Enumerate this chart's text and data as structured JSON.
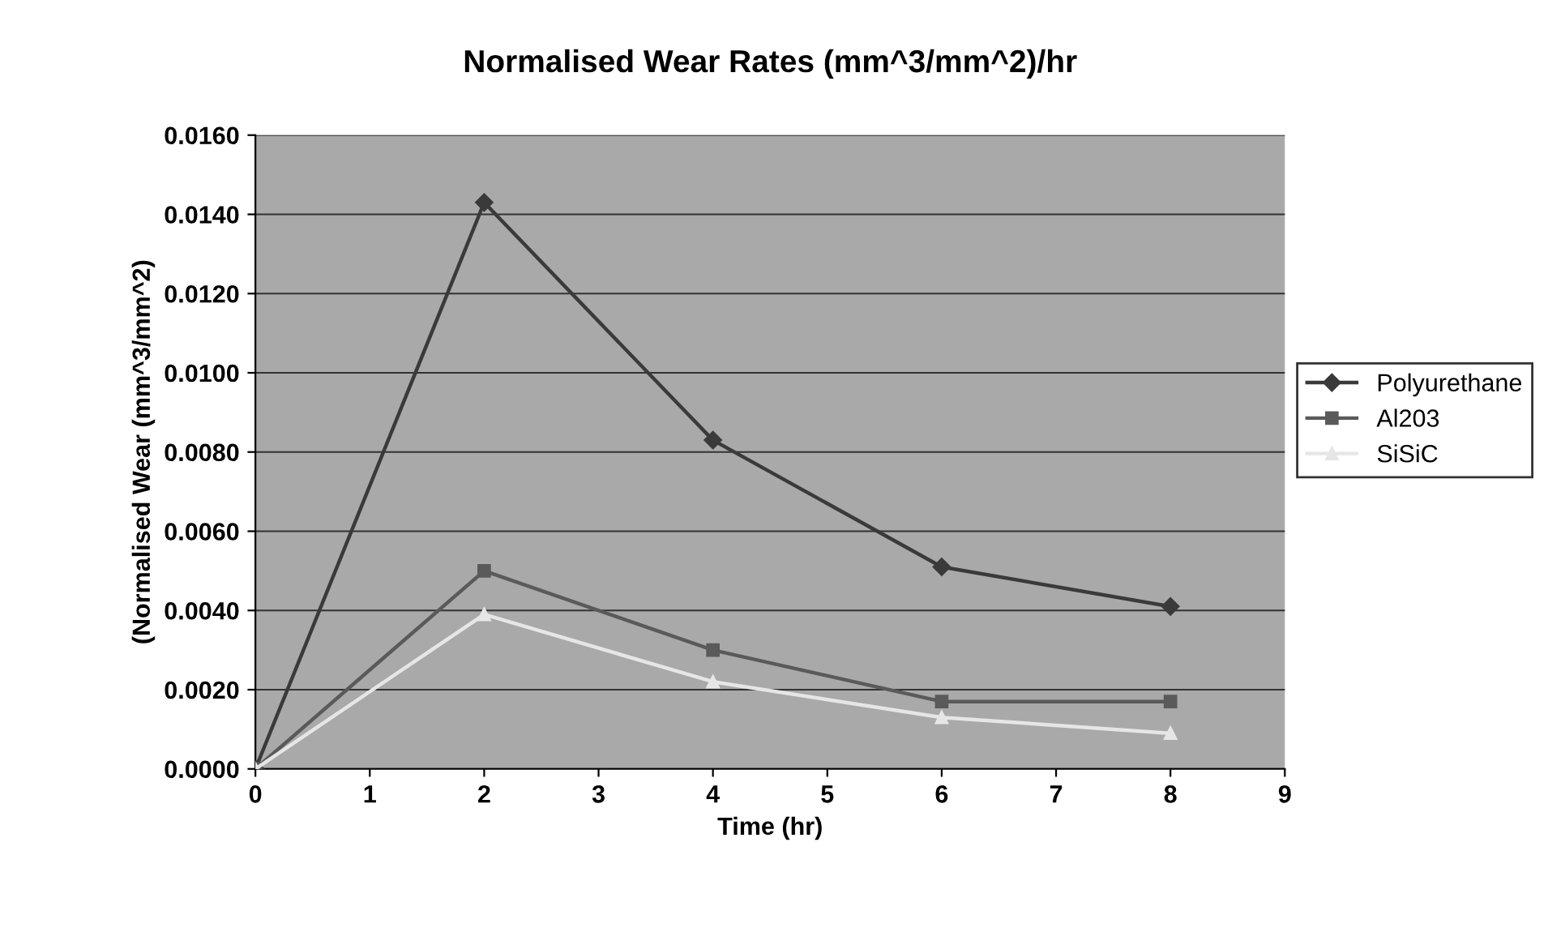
{
  "chart_data": {
    "type": "line",
    "title": "Normalised Wear Rates (mm^3/mm^2)/hr",
    "xlabel": "Time (hr)",
    "ylabel": "(Normalised Wear (mm^3/mm^2)",
    "x": [
      0,
      2,
      4,
      6,
      8
    ],
    "series": [
      {
        "name": "Polyurethane",
        "color": "#3a3a3a",
        "marker": "diamond",
        "values": [
          0.0,
          0.0143,
          0.0083,
          0.0051,
          0.0041
        ]
      },
      {
        "name": "Al203",
        "color": "#5a5a5a",
        "marker": "square",
        "values": [
          0.0,
          0.005,
          0.003,
          0.0017,
          0.0017
        ]
      },
      {
        "name": "SiSiC",
        "color": "#e6e6e6",
        "marker": "triangle",
        "values": [
          0.0,
          0.0039,
          0.0022,
          0.0013,
          0.0009
        ]
      }
    ],
    "xlim": [
      0,
      9
    ],
    "xticks": [
      0,
      1,
      2,
      3,
      4,
      5,
      6,
      7,
      8,
      9
    ],
    "ylim": [
      0,
      0.016
    ],
    "yticks": [
      {
        "value": 0,
        "label": "0.0000"
      },
      {
        "value": 0.002,
        "label": "0.0020"
      },
      {
        "value": 0.004,
        "label": "0.0040"
      },
      {
        "value": 0.006,
        "label": "0.0060"
      },
      {
        "value": 0.008,
        "label": "0.0080"
      },
      {
        "value": 0.01,
        "label": "0.0100"
      },
      {
        "value": 0.012,
        "label": "0.0120"
      },
      {
        "value": 0.014,
        "label": "0.0140"
      },
      {
        "value": 0.016,
        "label": "0.0160"
      }
    ],
    "grid": "y",
    "legend": "right",
    "line_style": "solid"
  }
}
